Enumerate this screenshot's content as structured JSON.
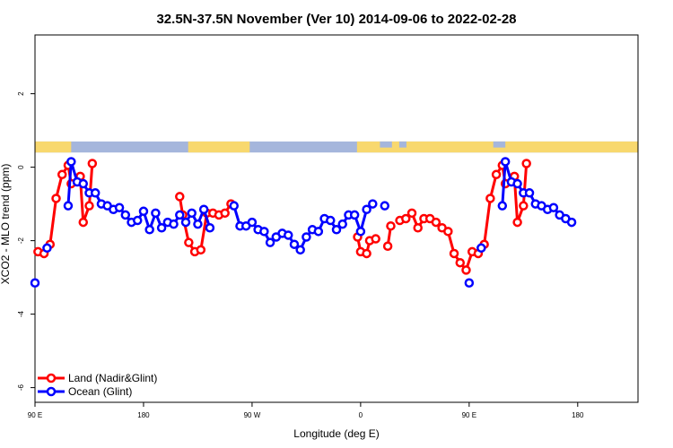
{
  "chart_data": {
    "type": "line",
    "title": "32.5N-37.5N November (Ver 10)   2014-09-06 to 2022-02-28",
    "xlabel": "Longitude (deg E)",
    "ylabel": "XCO2 - MLO trend (ppm)",
    "xlim": [
      90,
      590
    ],
    "ylim": [
      -6.4,
      3.6
    ],
    "x_ticks": [
      {
        "value": 90,
        "label": "90 E"
      },
      {
        "value": 180,
        "label": "180"
      },
      {
        "value": 270,
        "label": "90 W"
      },
      {
        "value": 360,
        "label": "0"
      },
      {
        "value": 450,
        "label": "90 E"
      },
      {
        "value": 540,
        "label": "180"
      }
    ],
    "y_ticks": [
      {
        "value": 2,
        "label": "2"
      },
      {
        "value": 0,
        "label": "0"
      },
      {
        "value": -2,
        "label": "-2"
      },
      {
        "value": -4,
        "label": "-4"
      },
      {
        "value": -6,
        "label": "-6"
      }
    ],
    "grid": false,
    "legend_position": "bottom-left",
    "land_ocean_band": {
      "y_range": [
        0.4,
        0.7
      ]
    },
    "series": [
      {
        "name": "Land (Nadir&Glint)",
        "color": "#ff0000",
        "points": [
          [
            92.5,
            -2.3
          ],
          [
            97.5,
            -2.35
          ],
          [
            102.5,
            -2.1
          ],
          [
            107.5,
            -0.85
          ],
          [
            112.5,
            -0.2
          ],
          [
            117.5,
            0.05
          ],
          [
            120,
            -0.45
          ],
          [
            127.5,
            -0.25
          ],
          [
            130,
            -1.5
          ],
          [
            135,
            -1.05
          ],
          [
            137.5,
            0.1
          ],
          [
            210,
            -0.8
          ],
          [
            212.5,
            -1.3
          ],
          [
            217.5,
            -2.05
          ],
          [
            222.5,
            -2.3
          ],
          [
            227.5,
            -2.25
          ],
          [
            232.5,
            -1.25
          ],
          [
            237.5,
            -1.25
          ],
          [
            242.5,
            -1.3
          ],
          [
            247.5,
            -1.25
          ],
          [
            252.5,
            -1.0
          ],
          [
            357.5,
            -1.9
          ],
          [
            360,
            -2.3
          ],
          [
            365,
            -2.35
          ],
          [
            367.5,
            -2.0
          ],
          [
            372.5,
            -1.95
          ],
          [
            382.5,
            -2.15
          ],
          [
            385,
            -1.6
          ],
          [
            392.5,
            -1.45
          ],
          [
            397.5,
            -1.4
          ],
          [
            402.5,
            -1.25
          ],
          [
            407.5,
            -1.65
          ],
          [
            412.5,
            -1.4
          ],
          [
            417.5,
            -1.4
          ],
          [
            422.5,
            -1.5
          ],
          [
            427.5,
            -1.65
          ],
          [
            432.5,
            -1.75
          ],
          [
            437.5,
            -2.35
          ],
          [
            442.5,
            -2.6
          ],
          [
            447.5,
            -2.8
          ],
          [
            452.5,
            -2.3
          ],
          [
            457.5,
            -2.35
          ],
          [
            462.5,
            -2.1
          ],
          [
            467.5,
            -0.85
          ],
          [
            472.5,
            -0.2
          ],
          [
            477.5,
            0.05
          ],
          [
            480,
            -0.45
          ],
          [
            487.5,
            -0.25
          ],
          [
            490,
            -1.5
          ],
          [
            495,
            -1.05
          ],
          [
            497.5,
            0.1
          ]
        ]
      },
      {
        "name": "Ocean (Glint)",
        "color": "#0000ff",
        "points": [
          [
            90,
            -3.15
          ],
          [
            100,
            -2.2
          ],
          [
            117.5,
            -1.05
          ],
          [
            120,
            0.15
          ],
          [
            125,
            -0.4
          ],
          [
            130,
            -0.45
          ],
          [
            135,
            -0.7
          ],
          [
            140,
            -0.7
          ],
          [
            145,
            -1.0
          ],
          [
            150,
            -1.05
          ],
          [
            155,
            -1.15
          ],
          [
            160,
            -1.1
          ],
          [
            165,
            -1.3
          ],
          [
            170,
            -1.5
          ],
          [
            175,
            -1.45
          ],
          [
            180,
            -1.2
          ],
          [
            185,
            -1.7
          ],
          [
            190,
            -1.25
          ],
          [
            195,
            -1.65
          ],
          [
            200,
            -1.5
          ],
          [
            205,
            -1.55
          ],
          [
            210,
            -1.3
          ],
          [
            215,
            -1.5
          ],
          [
            220,
            -1.25
          ],
          [
            225,
            -1.55
          ],
          [
            230,
            -1.15
          ],
          [
            235,
            -1.65
          ],
          [
            255,
            -1.05
          ],
          [
            260,
            -1.6
          ],
          [
            265,
            -1.6
          ],
          [
            270,
            -1.5
          ],
          [
            275,
            -1.7
          ],
          [
            280,
            -1.75
          ],
          [
            285,
            -2.05
          ],
          [
            290,
            -1.9
          ],
          [
            295,
            -1.8
          ],
          [
            300,
            -1.85
          ],
          [
            305,
            -2.1
          ],
          [
            310,
            -2.25
          ],
          [
            315,
            -1.9
          ],
          [
            320,
            -1.7
          ],
          [
            325,
            -1.75
          ],
          [
            330,
            -1.4
          ],
          [
            335,
            -1.45
          ],
          [
            340,
            -1.7
          ],
          [
            345,
            -1.55
          ],
          [
            350,
            -1.3
          ],
          [
            355,
            -1.3
          ],
          [
            360,
            -1.75
          ],
          [
            365,
            -1.15
          ],
          [
            370,
            -1.0
          ],
          [
            380,
            -1.05
          ],
          [
            450,
            -3.15
          ],
          [
            460,
            -2.2
          ],
          [
            477.5,
            -1.05
          ],
          [
            480,
            0.15
          ],
          [
            485,
            -0.4
          ],
          [
            490,
            -0.45
          ],
          [
            495,
            -0.7
          ],
          [
            500,
            -0.7
          ],
          [
            505,
            -1.0
          ],
          [
            510,
            -1.05
          ],
          [
            515,
            -1.15
          ],
          [
            520,
            -1.1
          ],
          [
            525,
            -1.3
          ],
          [
            530,
            -1.4
          ],
          [
            535,
            -1.5
          ]
        ]
      }
    ]
  }
}
